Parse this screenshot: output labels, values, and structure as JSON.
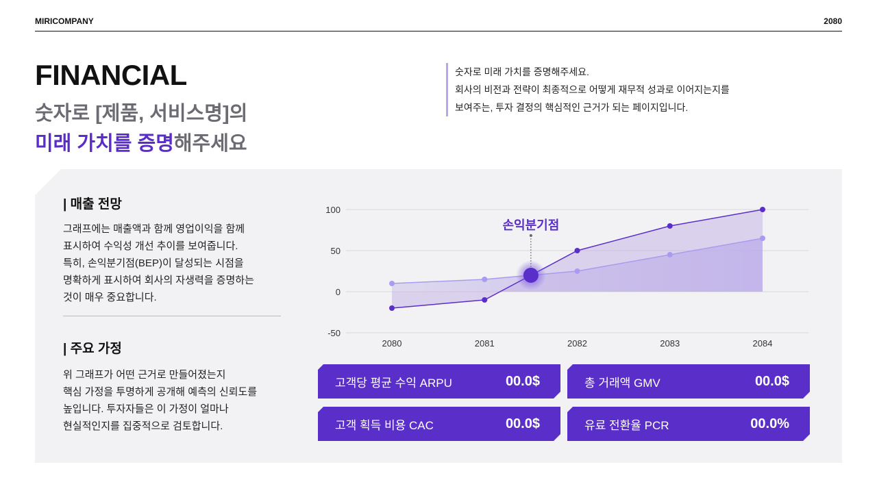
{
  "header": {
    "company": "MIRICOMPANY",
    "year": "2080"
  },
  "title": {
    "main": "FINANCIAL",
    "line1": "숫자로 [제품, 서비스명]의",
    "line2_accent": "미래 가치를 증명",
    "line2_rest": "해주세요"
  },
  "intro": [
    "숫자로 미래 가치를 증명해주세요.",
    "회사의 비전과 전략이 최종적으로 어떻게 재무적 성과로 이어지는지를",
    "보여주는, 투자 결정의 핵심적인 근거가 되는 페이지입니다."
  ],
  "sections": [
    {
      "title": "| 매출 전망",
      "lines": [
        "그래프에는 매출액과 함께 영업이익을 함께",
        "표시하여 수익성 개선 추이를 보여줍니다.",
        "특히, 손익분기점(BEP)이 달성되는 시점을",
        "명확하게 표시하여 회사의 자생력을 증명하는",
        "것이 매우 중요합니다."
      ]
    },
    {
      "title": "| 주요 가정",
      "lines": [
        "위 그래프가 어떤 근거로 만들어졌는지",
        "핵심 가정을 투명하게 공개해 예측의 신뢰도를",
        "높입니다. 투자자들은 이 가정이 얼마나",
        "현실적인지를 집중적으로 검토합니다."
      ]
    }
  ],
  "chart_data": {
    "type": "area",
    "categories": [
      "2080",
      "2081",
      "2082",
      "2083",
      "2084"
    ],
    "series": [
      {
        "values": [
          -20,
          -10,
          50,
          80,
          100
        ],
        "color": "#5a2ec8"
      },
      {
        "values": [
          10,
          15,
          25,
          45,
          65
        ],
        "color": "#a99cf0"
      }
    ],
    "yticks": [
      100,
      50,
      0,
      -50
    ],
    "ylim": [
      -50,
      100
    ],
    "grid": true,
    "annotation": {
      "label": "손익분기점",
      "x": 2081.5,
      "y": 20
    }
  },
  "kpis": [
    {
      "label": "고객당 평균 수익 ARPU",
      "value": "00.0$"
    },
    {
      "label": "총 거래액 GMV",
      "value": "00.0$"
    },
    {
      "label": "고객 획득 비용 CAC",
      "value": "00.0$"
    },
    {
      "label": "유료 전환율 PCR",
      "value": "00.0%"
    }
  ],
  "colors": {
    "accent": "#5a2ec8",
    "panel": "#f2f1f3"
  }
}
